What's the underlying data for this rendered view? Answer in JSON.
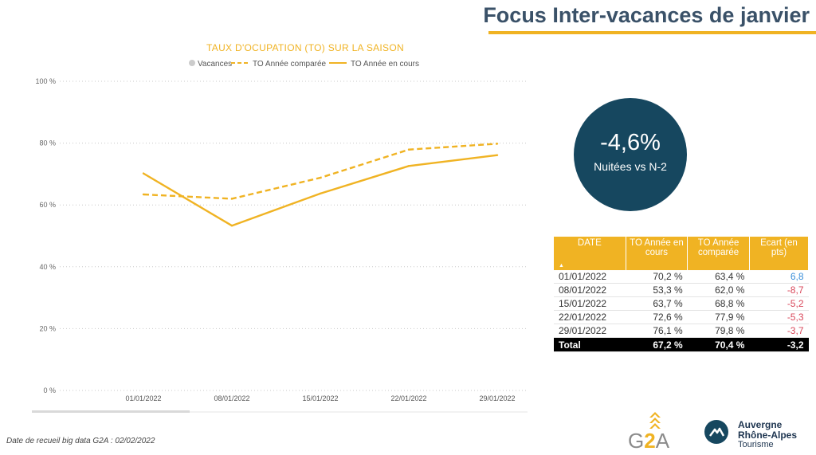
{
  "header": {
    "title": "Focus Inter-vacances de janvier",
    "accent_color": "#f0b323",
    "title_color": "#3a5168"
  },
  "chart_data": {
    "type": "line",
    "title": "TAUX D'OCUPATION (TO) SUR LA SAISON",
    "title_color": "#f0b323",
    "categories": [
      "01/01/2022",
      "08/01/2022",
      "15/01/2022",
      "22/01/2022",
      "29/01/2022"
    ],
    "series": [
      {
        "name": "TO Année comparée",
        "style": "dashed",
        "color": "#f0b323",
        "values": [
          63.4,
          62.0,
          68.8,
          77.9,
          79.8
        ]
      },
      {
        "name": "TO Année en cours",
        "style": "solid",
        "color": "#f0b323",
        "values": [
          70.2,
          53.3,
          63.7,
          72.6,
          76.1
        ]
      }
    ],
    "legend": [
      {
        "label": "Vacances",
        "marker": "dot",
        "color": "#cccccc"
      },
      {
        "label": "TO Année comparée",
        "marker": "dashed-line",
        "color": "#f0b323"
      },
      {
        "label": "TO Année en cours",
        "marker": "line",
        "color": "#f0b323"
      }
    ],
    "legend_position": "top-center",
    "ylim": [
      0,
      100
    ],
    "yticks": [
      0,
      20,
      40,
      60,
      80,
      100
    ],
    "ytick_labels": [
      "0 %",
      "20 %",
      "40 %",
      "60 %",
      "80 %",
      "100 %"
    ],
    "grid": "horizontal-dotted",
    "xlabel": "",
    "ylabel": ""
  },
  "kpi": {
    "value": "-4,6%",
    "label": "Nuitées vs N-2",
    "color": "#16475f"
  },
  "table": {
    "headers": [
      "DATE",
      "TO Année en cours",
      "TO Année comparée",
      "Ecart (en pts)"
    ],
    "rows": [
      {
        "date": "01/01/2022",
        "current": "70,2 %",
        "compared": "63,4 %",
        "diff": "6,8",
        "sign": "pos"
      },
      {
        "date": "08/01/2022",
        "current": "53,3 %",
        "compared": "62,0 %",
        "diff": "-8,7",
        "sign": "neg"
      },
      {
        "date": "15/01/2022",
        "current": "63,7 %",
        "compared": "68,8 %",
        "diff": "-5,2",
        "sign": "neg"
      },
      {
        "date": "22/01/2022",
        "current": "72,6 %",
        "compared": "77,9 %",
        "diff": "-5,3",
        "sign": "neg"
      },
      {
        "date": "29/01/2022",
        "current": "76,1 %",
        "compared": "79,8 %",
        "diff": "-3,7",
        "sign": "neg"
      }
    ],
    "total": {
      "label": "Total",
      "current": "67,2 %",
      "compared": "70,4 %",
      "diff": "-3,2"
    }
  },
  "footer": {
    "note": "Date de recueil big data G2A : 02/02/2022"
  },
  "logos": {
    "g2a": {
      "prefix": "G",
      "two": "2",
      "suffix": "A"
    },
    "ara": {
      "line1": "Auvergne",
      "line2": "Rhône-Alpes",
      "line3": "Tourisme"
    }
  }
}
